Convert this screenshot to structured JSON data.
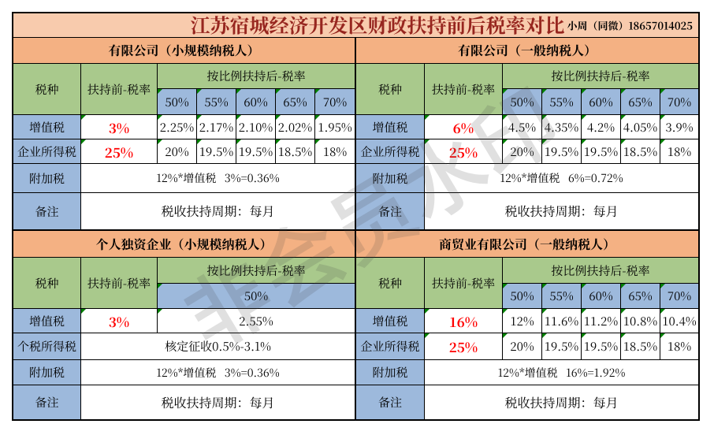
{
  "title_bar": {
    "title": "江苏宿城经济开发区财政扶持前后税率对比",
    "contact": "小周（同微）18657014025"
  },
  "watermark": {
    "text": "非会员水印"
  },
  "quadrants": [
    {
      "section": "有限公司（小规模纳税人）",
      "tax_type_label": "税种",
      "before_label": "扶持前-税率",
      "after_label": "按比例扶持后-税率",
      "ratios": [
        "50%",
        "55%",
        "60%",
        "65%",
        "70%"
      ],
      "rows": [
        {
          "label": "增值税",
          "before": "3%",
          "values": [
            "2.25%",
            "2.17%",
            "2.10%",
            "2.02%",
            "1.95%"
          ]
        },
        {
          "label": "企业所得税",
          "before": "25%",
          "values": [
            "20%",
            "19.5%",
            "19.5%",
            "18.5%",
            "18%"
          ]
        },
        {
          "label": "附加税",
          "text": "12%*增值税 3%=0.36%"
        },
        {
          "label": "备注",
          "text": "税收扶持周期：每月"
        }
      ]
    },
    {
      "section": "有限公司（一般纳税人）",
      "tax_type_label": "税种",
      "before_label": "扶持前-税率",
      "after_label": "按比例扶持后-税率",
      "ratios": [
        "50%",
        "55%",
        "60%",
        "65%",
        "70%"
      ],
      "rows": [
        {
          "label": "增值税",
          "before": "6%",
          "values": [
            "4.5%",
            "4.35%",
            "4.2%",
            "4.05%",
            "3.9%"
          ]
        },
        {
          "label": "企业所得税",
          "before": "25%",
          "values": [
            "20%",
            "19.5%",
            "19.5%",
            "18.5%",
            "18%"
          ]
        },
        {
          "label": "附加税",
          "text": "12%*增值税 6%=0.72%"
        },
        {
          "label": "备注",
          "text": "税收扶持周期：每月"
        }
      ]
    },
    {
      "section": "个人独资企业（小规模纳税人）",
      "tax_type_label": "税种",
      "before_label": "扶持前-税率",
      "after_label": "按比例扶持后-税率",
      "ratio_merged": "50%",
      "rows": [
        {
          "label": "增值税",
          "before": "3%",
          "value_merged": "2.55%"
        },
        {
          "label": "个税所得税",
          "text": "核定征收0.5%-3.1%"
        },
        {
          "label": "附加税",
          "text": "12%*增值税 3%=0.36%"
        },
        {
          "label": "备注",
          "text": "税收扶持周期：每月"
        }
      ]
    },
    {
      "section": "商贸业有限公司（一般纳税人）",
      "tax_type_label": "税种",
      "before_label": "扶持前-税率",
      "after_label": "按比例扶持后-税率",
      "ratios": [
        "50%",
        "55%",
        "60%",
        "65%",
        "70%"
      ],
      "rows": [
        {
          "label": "增值税",
          "before": "16%",
          "values": [
            "12%",
            "11.6%",
            "11.2%",
            "10.8%",
            "10.4%"
          ]
        },
        {
          "label": "企业所得税",
          "before": "25%",
          "values": [
            "20%",
            "19.5%",
            "19.5%",
            "18.5%",
            "18%"
          ]
        },
        {
          "label": "附加税",
          "text": "12%*增值税 16%=1.92%"
        },
        {
          "label": "备注",
          "text": "税收扶持周期：每月"
        }
      ]
    }
  ],
  "colors": {
    "title_bg": "#F8CBAD",
    "section_bg": "#F4B183",
    "header_green": "#A9C98C",
    "cell_blue": "#9DB9DC",
    "title_text": "#C00000",
    "highlight_red": "#FF0000",
    "flag_green": "#008000",
    "border": "#000000"
  }
}
